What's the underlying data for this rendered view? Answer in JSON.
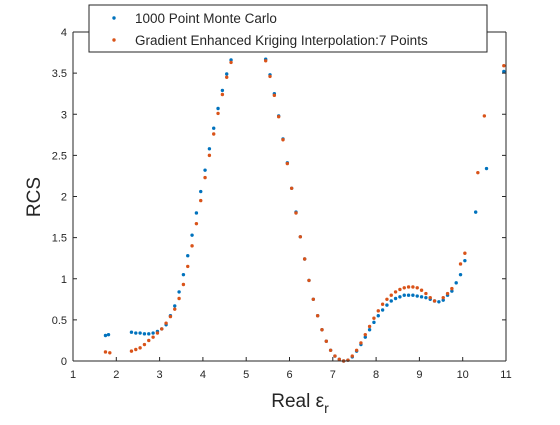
{
  "chart_data": {
    "type": "scatter",
    "title": "",
    "xlabel_main": "Real ",
    "xlabel_symbol": "ε",
    "xlabel_sub": "r",
    "ylabel": "RCS",
    "xlim": [
      1,
      11
    ],
    "ylim": [
      0,
      4
    ],
    "xticks": [
      "1",
      "2",
      "3",
      "4",
      "5",
      "6",
      "7",
      "8",
      "9",
      "10",
      "11"
    ],
    "yticks": [
      "0",
      "0.5",
      "1",
      "1.5",
      "2",
      "2.5",
      "3",
      "3.5",
      "4"
    ],
    "grid": false,
    "legend_position": "top",
    "series": [
      {
        "name": "1000 Point Monte Carlo",
        "color": "#0072BD",
        "marker": "dot",
        "points": [
          [
            1.75,
            0.31
          ],
          [
            1.82,
            0.32
          ],
          [
            2.35,
            0.35
          ],
          [
            2.45,
            0.34
          ],
          [
            2.55,
            0.34
          ],
          [
            2.65,
            0.33
          ],
          [
            2.75,
            0.33
          ],
          [
            2.85,
            0.34
          ],
          [
            2.95,
            0.36
          ],
          [
            3.05,
            0.39
          ],
          [
            3.15,
            0.44
          ],
          [
            3.25,
            0.55
          ],
          [
            3.35,
            0.67
          ],
          [
            3.45,
            0.84
          ],
          [
            3.55,
            1.05
          ],
          [
            3.65,
            1.28
          ],
          [
            3.75,
            1.53
          ],
          [
            3.85,
            1.8
          ],
          [
            3.95,
            2.06
          ],
          [
            4.05,
            2.32
          ],
          [
            4.15,
            2.58
          ],
          [
            4.25,
            2.83
          ],
          [
            4.35,
            3.07
          ],
          [
            4.45,
            3.29
          ],
          [
            4.55,
            3.49
          ],
          [
            4.65,
            3.66
          ],
          [
            4.75,
            3.8
          ],
          [
            4.85,
            3.91
          ],
          [
            4.95,
            3.98
          ],
          [
            5.05,
            4.0
          ],
          [
            5.15,
            3.98
          ],
          [
            5.25,
            3.92
          ],
          [
            5.35,
            3.82
          ],
          [
            5.45,
            3.67
          ],
          [
            5.55,
            3.48
          ],
          [
            5.65,
            3.25
          ],
          [
            5.75,
            2.98
          ],
          [
            5.85,
            2.7
          ],
          [
            5.95,
            2.41
          ],
          [
            6.05,
            2.1
          ],
          [
            6.15,
            1.81
          ],
          [
            6.25,
            1.51
          ],
          [
            6.35,
            1.24
          ],
          [
            6.45,
            0.98
          ],
          [
            6.55,
            0.75
          ],
          [
            6.65,
            0.55
          ],
          [
            6.75,
            0.38
          ],
          [
            6.85,
            0.24
          ],
          [
            6.95,
            0.13
          ],
          [
            7.05,
            0.06
          ],
          [
            7.15,
            0.02
          ],
          [
            7.25,
            0.0
          ],
          [
            7.35,
            0.01
          ],
          [
            7.45,
            0.05
          ],
          [
            7.55,
            0.12
          ],
          [
            7.65,
            0.2
          ],
          [
            7.75,
            0.29
          ],
          [
            7.85,
            0.38
          ],
          [
            7.95,
            0.47
          ],
          [
            8.05,
            0.55
          ],
          [
            8.15,
            0.62
          ],
          [
            8.25,
            0.68
          ],
          [
            8.35,
            0.73
          ],
          [
            8.45,
            0.76
          ],
          [
            8.55,
            0.78
          ],
          [
            8.65,
            0.8
          ],
          [
            8.75,
            0.8
          ],
          [
            8.85,
            0.8
          ],
          [
            8.95,
            0.79
          ],
          [
            9.05,
            0.78
          ],
          [
            9.15,
            0.77
          ],
          [
            9.25,
            0.75
          ],
          [
            9.35,
            0.73
          ],
          [
            9.45,
            0.72
          ],
          [
            9.55,
            0.74
          ],
          [
            9.65,
            0.8
          ],
          [
            9.75,
            0.85
          ],
          [
            9.85,
            0.95
          ],
          [
            9.95,
            1.05
          ],
          [
            10.05,
            1.22
          ],
          [
            10.3,
            1.81
          ],
          [
            10.55,
            2.34
          ],
          [
            10.95,
            3.52
          ]
        ]
      },
      {
        "name": "Gradient Enhanced Kriging Interpolation:7 Points",
        "color": "#D95319",
        "marker": "dot",
        "points": [
          [
            1.75,
            0.11
          ],
          [
            1.85,
            0.1
          ],
          [
            2.35,
            0.12
          ],
          [
            2.45,
            0.14
          ],
          [
            2.55,
            0.16
          ],
          [
            2.65,
            0.2
          ],
          [
            2.75,
            0.25
          ],
          [
            2.85,
            0.29
          ],
          [
            2.95,
            0.34
          ],
          [
            3.05,
            0.39
          ],
          [
            3.15,
            0.46
          ],
          [
            3.25,
            0.54
          ],
          [
            3.35,
            0.63
          ],
          [
            3.45,
            0.76
          ],
          [
            3.55,
            0.93
          ],
          [
            3.65,
            1.15
          ],
          [
            3.75,
            1.4
          ],
          [
            3.85,
            1.67
          ],
          [
            3.95,
            1.95
          ],
          [
            4.05,
            2.23
          ],
          [
            4.15,
            2.5
          ],
          [
            4.25,
            2.76
          ],
          [
            4.35,
            3.01
          ],
          [
            4.45,
            3.24
          ],
          [
            4.55,
            3.45
          ],
          [
            4.65,
            3.63
          ],
          [
            4.75,
            3.78
          ],
          [
            4.85,
            3.9
          ],
          [
            4.95,
            3.97
          ],
          [
            5.05,
            4.0
          ],
          [
            5.15,
            3.98
          ],
          [
            5.25,
            3.91
          ],
          [
            5.35,
            3.8
          ],
          [
            5.45,
            3.65
          ],
          [
            5.55,
            3.46
          ],
          [
            5.65,
            3.23
          ],
          [
            5.75,
            2.97
          ],
          [
            5.85,
            2.69
          ],
          [
            5.95,
            2.4
          ],
          [
            6.05,
            2.1
          ],
          [
            6.15,
            1.8
          ],
          [
            6.25,
            1.51
          ],
          [
            6.35,
            1.24
          ],
          [
            6.45,
            0.98
          ],
          [
            6.55,
            0.75
          ],
          [
            6.65,
            0.55
          ],
          [
            6.75,
            0.38
          ],
          [
            6.85,
            0.24
          ],
          [
            6.95,
            0.13
          ],
          [
            7.05,
            0.06
          ],
          [
            7.15,
            0.02
          ],
          [
            7.25,
            0.0
          ],
          [
            7.35,
            0.01
          ],
          [
            7.45,
            0.06
          ],
          [
            7.55,
            0.13
          ],
          [
            7.65,
            0.22
          ],
          [
            7.75,
            0.32
          ],
          [
            7.85,
            0.42
          ],
          [
            7.95,
            0.52
          ],
          [
            8.05,
            0.61
          ],
          [
            8.15,
            0.69
          ],
          [
            8.25,
            0.75
          ],
          [
            8.35,
            0.8
          ],
          [
            8.45,
            0.84
          ],
          [
            8.55,
            0.87
          ],
          [
            8.65,
            0.89
          ],
          [
            8.75,
            0.9
          ],
          [
            8.85,
            0.9
          ],
          [
            8.95,
            0.89
          ],
          [
            9.05,
            0.86
          ],
          [
            9.15,
            0.82
          ],
          [
            9.25,
            0.77
          ],
          [
            9.35,
            0.73
          ],
          [
            9.55,
            0.77
          ],
          [
            9.65,
            0.82
          ],
          [
            9.75,
            0.88
          ],
          [
            9.95,
            1.18
          ],
          [
            10.05,
            1.31
          ],
          [
            10.35,
            2.29
          ],
          [
            10.5,
            2.98
          ],
          [
            10.95,
            3.59
          ]
        ]
      }
    ]
  }
}
